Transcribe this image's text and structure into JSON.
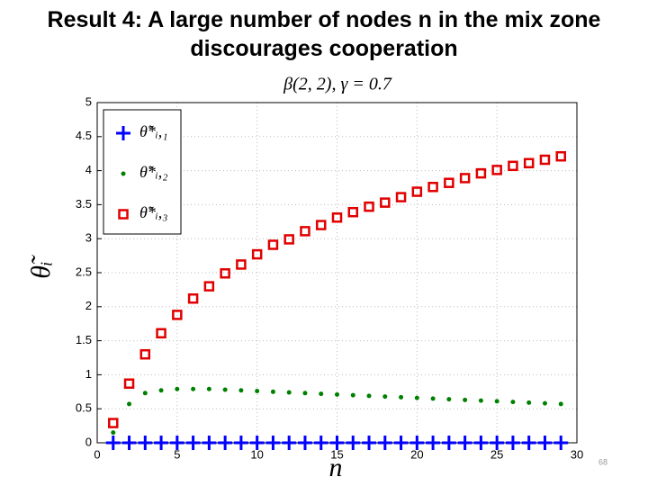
{
  "slide_title": "Result 4: A large number of nodes n in the mix zone discourages cooperation",
  "page_number": "68",
  "chart_data": {
    "type": "scatter",
    "title": "β(2, 2), γ = 0.7",
    "x_label": "n",
    "y_label": "θ̃ᵢ",
    "x": [
      1,
      2,
      3,
      4,
      5,
      6,
      7,
      8,
      9,
      10,
      11,
      12,
      13,
      14,
      15,
      16,
      17,
      18,
      19,
      20,
      21,
      22,
      23,
      24,
      25,
      26,
      27,
      28,
      29
    ],
    "series": [
      {
        "name": "θ̃*ᵢ,₁",
        "color": "#0000ff",
        "marker": "plus",
        "values": [
          0,
          0,
          0,
          0,
          0,
          0,
          0,
          0,
          0,
          0,
          0,
          0,
          0,
          0,
          0,
          0,
          0,
          0,
          0,
          0,
          0,
          0,
          0,
          0,
          0,
          0,
          0,
          0,
          0
        ]
      },
      {
        "name": "θ̃*ᵢ,₂",
        "color": "#008000",
        "marker": "dot",
        "values": [
          0.15,
          0.57,
          0.73,
          0.77,
          0.79,
          0.79,
          0.79,
          0.78,
          0.77,
          0.76,
          0.75,
          0.74,
          0.73,
          0.72,
          0.71,
          0.7,
          0.69,
          0.68,
          0.67,
          0.66,
          0.65,
          0.64,
          0.63,
          0.62,
          0.61,
          0.6,
          0.59,
          0.58,
          0.57
        ]
      },
      {
        "name": "θ̃*ᵢ,₃",
        "color": "#e00000",
        "marker": "square",
        "values": [
          0.29,
          0.87,
          1.3,
          1.61,
          1.88,
          2.12,
          2.3,
          2.49,
          2.62,
          2.77,
          2.91,
          2.99,
          3.11,
          3.2,
          3.31,
          3.39,
          3.47,
          3.53,
          3.61,
          3.69,
          3.76,
          3.82,
          3.89,
          3.96,
          4.01,
          4.07,
          4.11,
          4.16,
          4.21
        ]
      }
    ],
    "xlim": [
      0,
      30
    ],
    "xticks": [
      0,
      5,
      10,
      15,
      20,
      25,
      30
    ],
    "ylim": [
      0,
      5
    ],
    "yticks": [
      0,
      0.5,
      1,
      1.5,
      2,
      2.5,
      3,
      3.5,
      4,
      4.5,
      5
    ],
    "grid": true,
    "legend": "upper left"
  }
}
